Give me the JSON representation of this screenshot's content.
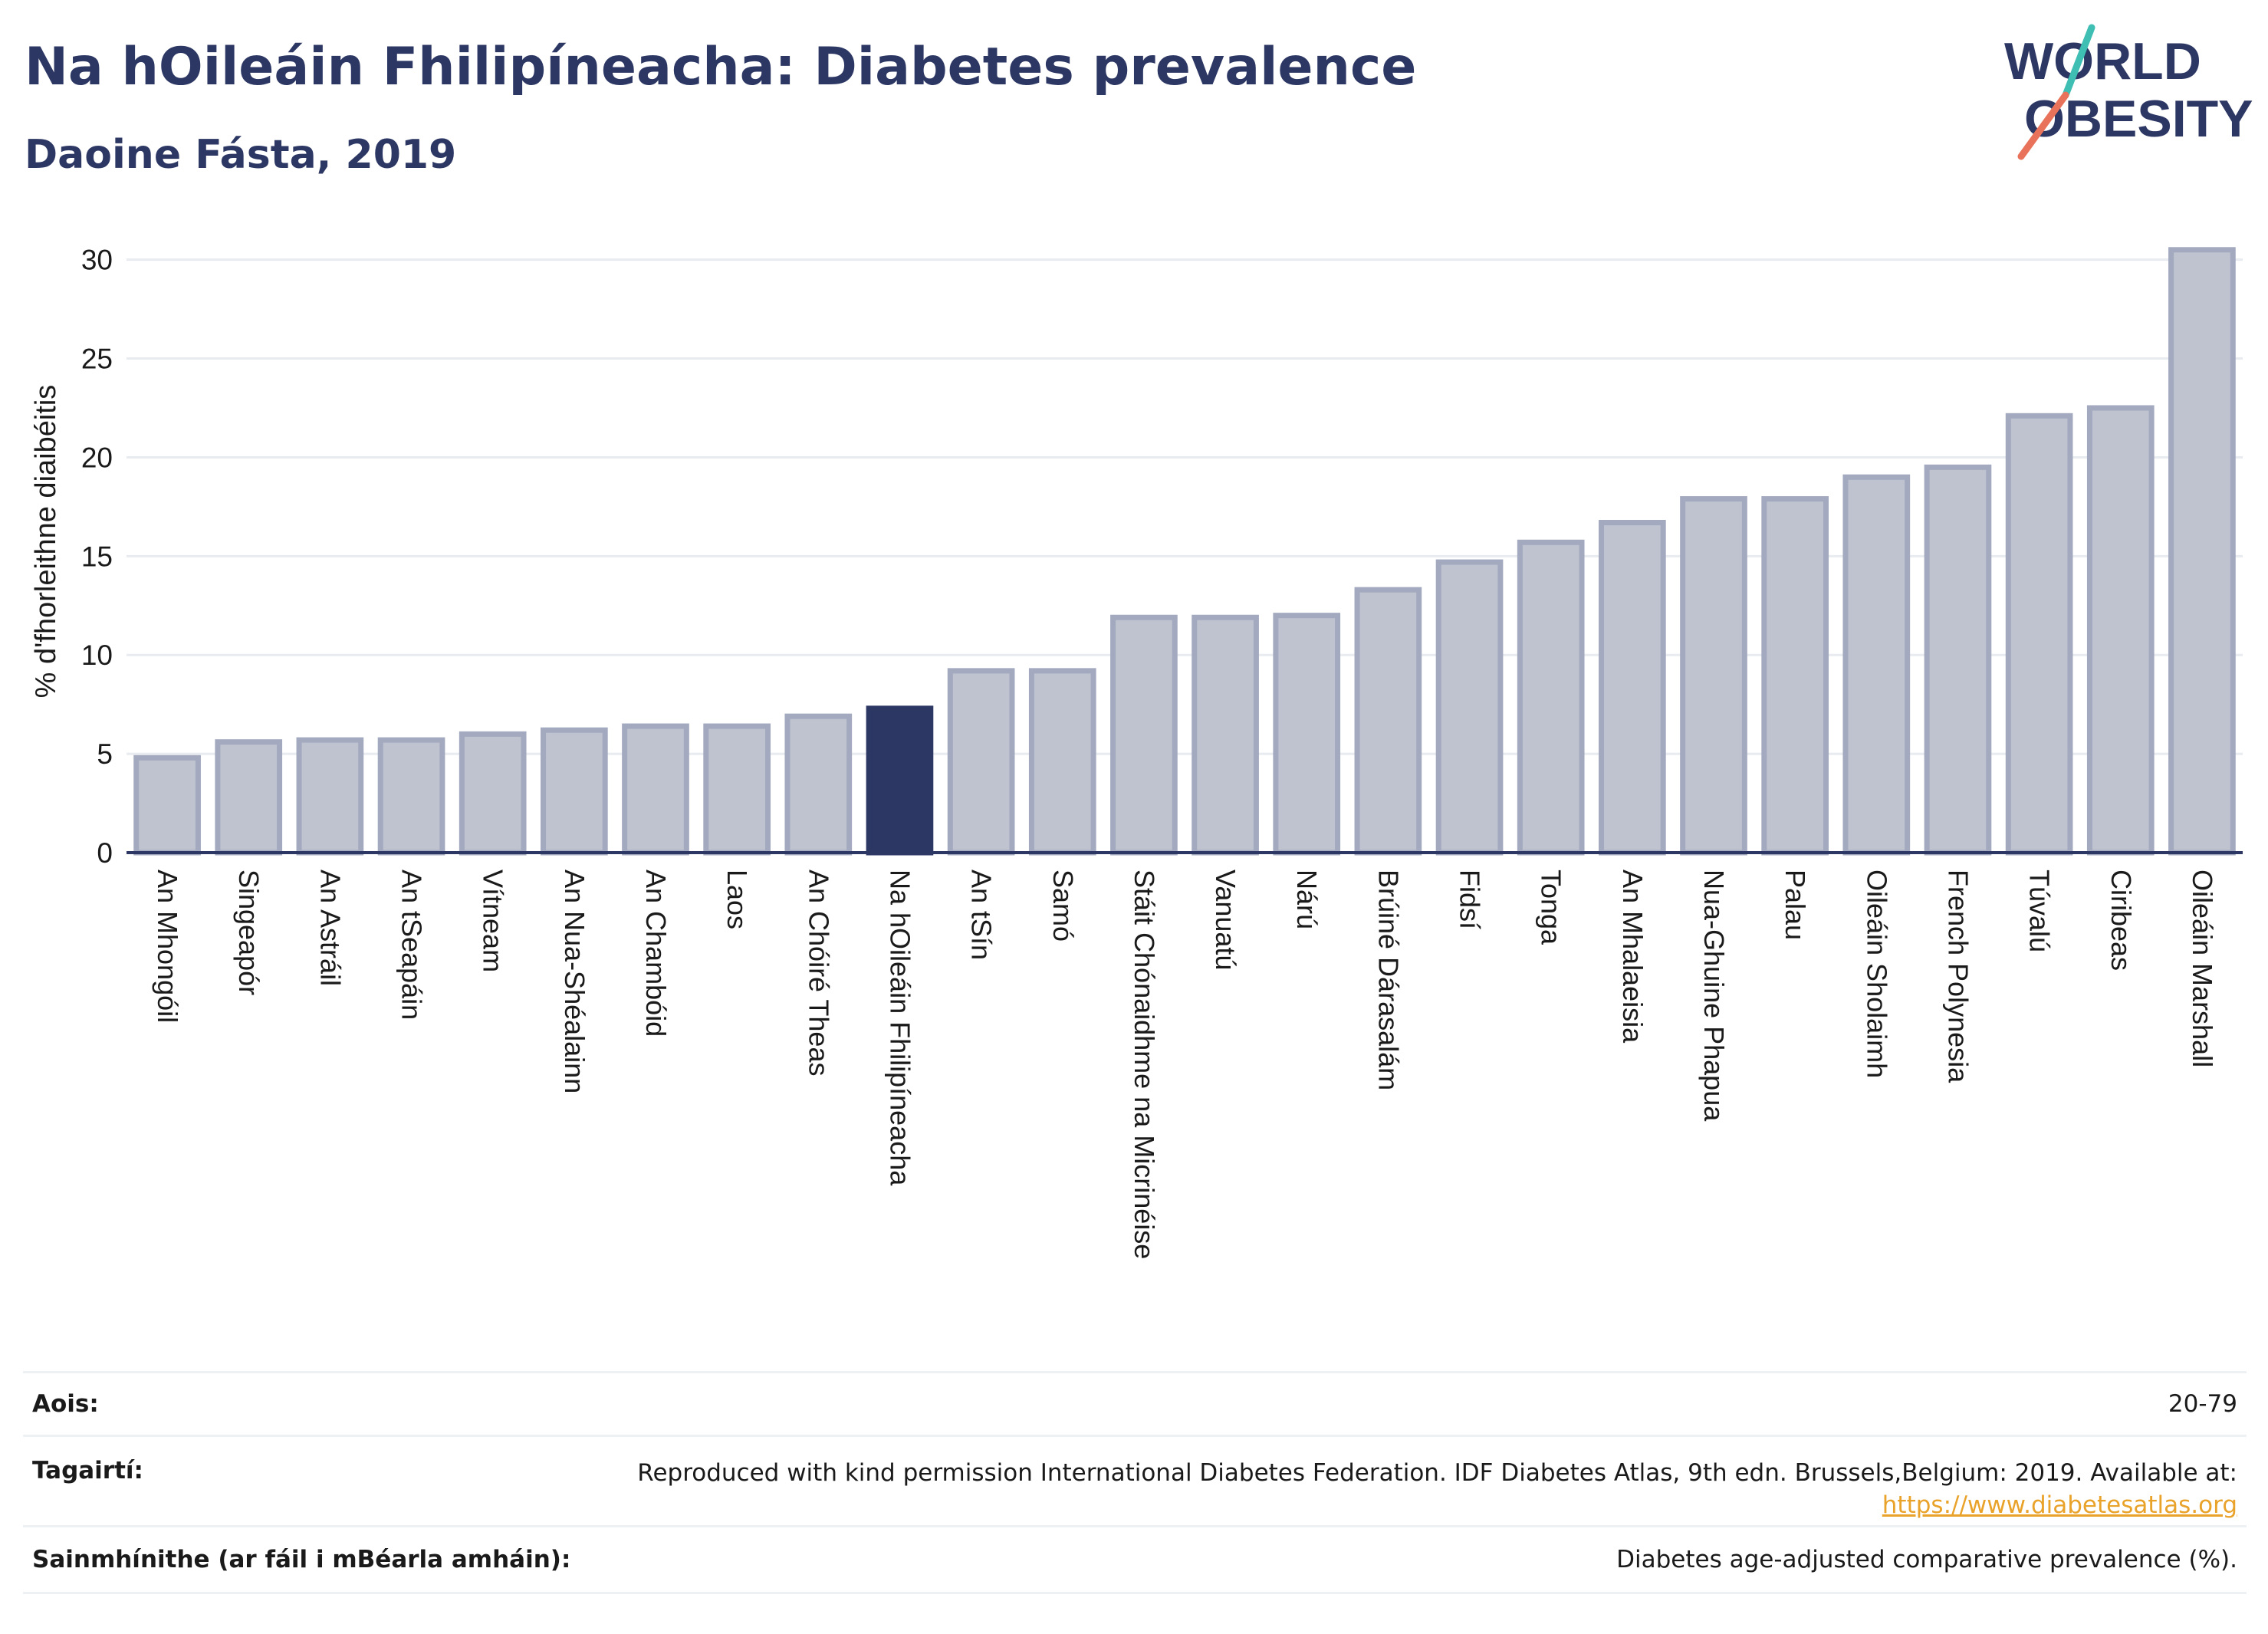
{
  "header": {
    "title": "Na hOileáin Fhilipíneacha: Diabetes prevalence",
    "subtitle": "Daoine Fásta, 2019"
  },
  "logo": {
    "text_line1": "WORLD",
    "text_line2": "OBESITY",
    "colors": {
      "text": "#2c3764",
      "slash_top": "#3fbfb4",
      "slash_bottom": "#e8735a"
    }
  },
  "colors": {
    "bar_default": "#bfc3d0",
    "bar_default_stroke": "#a3a9be",
    "bar_highlight": "#2c3764",
    "axis": "#2c3764",
    "grid": "#e8ebef",
    "text": "#2c3764"
  },
  "chart_data": {
    "type": "bar",
    "title": "Na hOileáin Fhilipíneacha: Diabetes prevalence",
    "subtitle": "Daoine Fásta, 2019",
    "xlabel": "",
    "ylabel": "% d'fhorleithne diaibéitis",
    "ylim": [
      0,
      31.5
    ],
    "yticks": [
      0,
      5,
      10,
      15,
      20,
      25,
      30
    ],
    "grid": true,
    "highlight_category": "Na hOileáin Fhilipíneacha",
    "categories": [
      "An Mhongóil",
      "Singeapór",
      "An Astráil",
      "An tSeapáin",
      "Vítneam",
      "An Nua-Shéalainn",
      "An Chambóid",
      "Laos",
      "An Chóiré Theas",
      "Na hOileáin Fhilipíneacha",
      "An tSín",
      "Samó",
      "Stáit Chónaidhme na Micrinéise",
      "Vanuatú",
      "Nárú",
      "Brúiné Dárasalám",
      "Fidsí",
      "Tonga",
      "An Mhalaeisia",
      "Nua-Ghuine Phapua",
      "Palau",
      "Oileáin Sholaimh",
      "French Polynesia",
      "Túvalú",
      "Ciribeas",
      "Oileáin Marshall"
    ],
    "values": [
      4.8,
      5.6,
      5.7,
      5.7,
      6.0,
      6.2,
      6.4,
      6.4,
      6.9,
      7.3,
      9.2,
      9.2,
      11.9,
      11.9,
      12.0,
      13.3,
      14.7,
      15.7,
      16.7,
      17.9,
      17.9,
      19.0,
      19.5,
      22.1,
      22.5,
      30.5
    ]
  },
  "info": {
    "age_label": "Aois:",
    "age_value": "20-79",
    "references_label": "Tagairtí:",
    "references_text": "Reproduced with kind permission International Diabetes Federation. IDF Diabetes Atlas, 9th edn. Brussels,Belgium: 2019. Available at:",
    "references_link": "https://www.diabetesatlas.org",
    "definitions_label": "Sainmhínithe (ar fáil i mBéarla amháin):",
    "definitions_value": "Diabetes age-adjusted comparative prevalence (%)."
  }
}
